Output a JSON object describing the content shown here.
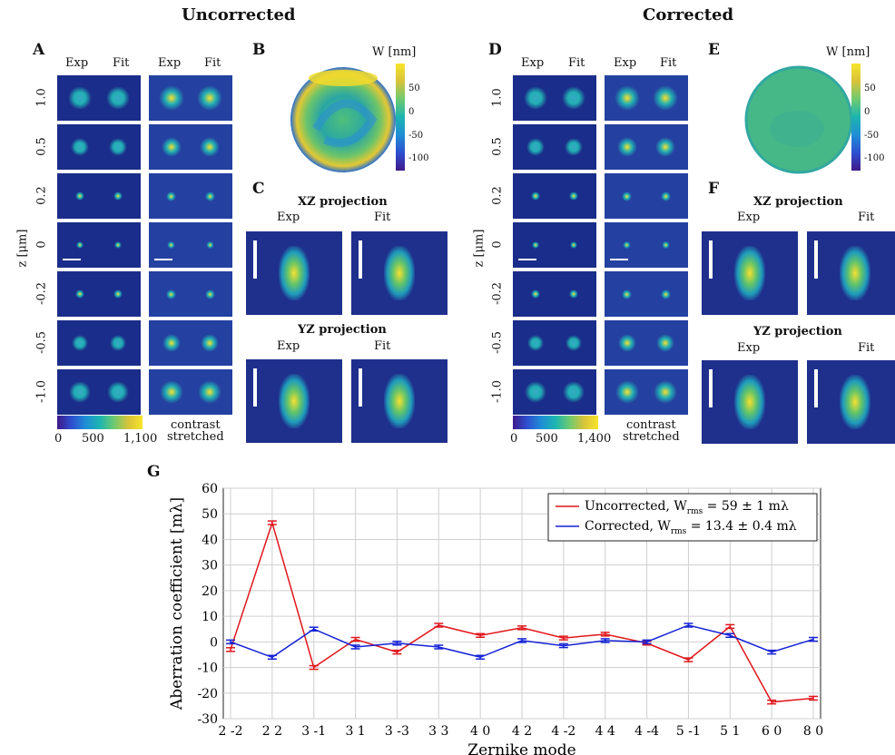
{
  "titles": {
    "left": "Uncorrected",
    "right": "Corrected"
  },
  "panels": {
    "A": "A",
    "B": "B",
    "C": "C",
    "D": "D",
    "E": "E",
    "F": "F",
    "G": "G"
  },
  "columns": {
    "exp": "Exp",
    "fit": "Fit"
  },
  "z_axis_label": "z [μm]",
  "z_values": [
    "1.0",
    "0.5",
    "0.2",
    "0",
    "-0.2",
    "-0.5",
    "-1.0"
  ],
  "colorbar_left": {
    "ticks": [
      "0",
      "500",
      "1,100"
    ],
    "note_line1": "contrast",
    "note_line2": "stretched"
  },
  "colorbar_right": {
    "ticks": [
      "0",
      "500",
      "1,400"
    ],
    "note_line1": "contrast",
    "note_line2": "stretched"
  },
  "pupil_colorbar": {
    "label": "W [nm]",
    "ticks": [
      "50",
      "0",
      "-50",
      "-100"
    ]
  },
  "projections": {
    "xz": "XZ projection",
    "yz": "YZ projection"
  },
  "chart_data": {
    "type": "line",
    "ylabel": "Aberration coefficient [mλ]",
    "xlabel": "Zernike mode",
    "ylim": [
      -30,
      60
    ],
    "yticks": [
      -30,
      -20,
      -10,
      0,
      10,
      20,
      30,
      40,
      50,
      60
    ],
    "categories": [
      "2 -2",
      "2 2",
      "3 -1",
      "3 1",
      "3 -3",
      "3 3",
      "4 0",
      "4 2",
      "4 -2",
      "4 4",
      "4 -4",
      "5 -1",
      "5 1",
      "6 0",
      "8 0"
    ],
    "grid": true,
    "legend_position": "top-right",
    "series": [
      {
        "name": "Uncorrected, W_rms = 59 ± 1 mλ",
        "legend_main": "Uncorrected, W",
        "legend_sub": "rms",
        "legend_tail": " = 59 ± 1 mλ",
        "color": "#e0161b",
        "values": [
          -3,
          46.5,
          -10,
          1,
          -4,
          6.5,
          2.5,
          5.5,
          1.5,
          3,
          -0.5,
          -7,
          6,
          -23.5,
          -22
        ]
      },
      {
        "name": "Corrected, W_rms = 13.4 ± 0.4 mλ",
        "legend_main": "Corrected, W",
        "legend_sub": "rms",
        "legend_tail": " = 13.4 ± 0.4 mλ",
        "color": "#1421d6",
        "values": [
          0,
          -6,
          5,
          -2,
          -0.5,
          -2,
          -6,
          0.5,
          -1.5,
          0.5,
          0,
          6.5,
          2.5,
          -4,
          1
        ]
      }
    ]
  }
}
